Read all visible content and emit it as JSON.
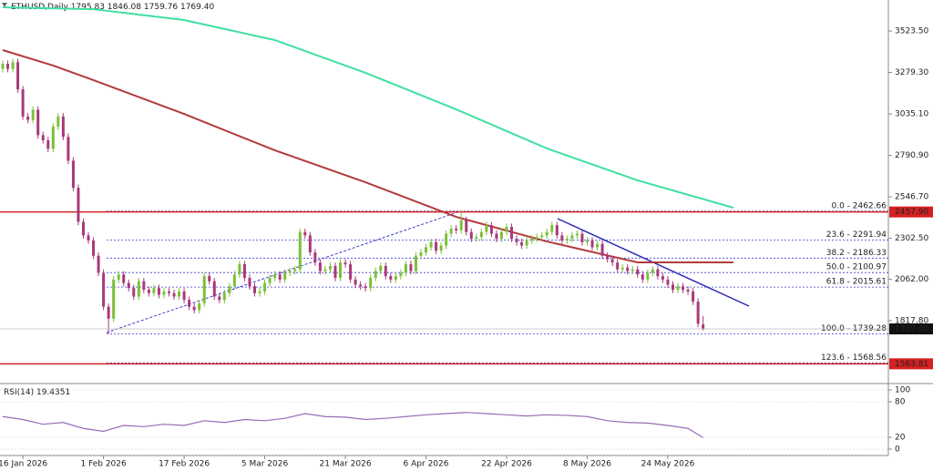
{
  "chart_data": {
    "type": "candlestick",
    "symbol": "ETHUSD,Daily",
    "quote_labels": [
      "1795.83",
      "1846.08",
      "1759.76",
      "1769.40"
    ],
    "categories": [
      null,
      null,
      null,
      null,
      "16 Jan 2026",
      null,
      null,
      null,
      null,
      null,
      null,
      null,
      null,
      null,
      null,
      null,
      null,
      null,
      null,
      null,
      "1 Feb 2026",
      null,
      null,
      null,
      null,
      null,
      null,
      null,
      null,
      null,
      null,
      null,
      null,
      null,
      null,
      null,
      "17 Feb 2026",
      null,
      null,
      null,
      null,
      null,
      null,
      null,
      null,
      null,
      null,
      null,
      null,
      null,
      null,
      null,
      "5 Mar 2026",
      null,
      null,
      null,
      null,
      null,
      null,
      null,
      null,
      null,
      null,
      null,
      null,
      null,
      null,
      null,
      "21 Mar 2026",
      null,
      null,
      null,
      null,
      null,
      null,
      null,
      null,
      null,
      null,
      null,
      null,
      null,
      null,
      null,
      "6 Apr 2026",
      null,
      null,
      null,
      null,
      null,
      null,
      null,
      null,
      null,
      null,
      null,
      null,
      null,
      null,
      null,
      "22 Apr 2026",
      null,
      null,
      null,
      null,
      null,
      null,
      null,
      null,
      null,
      null,
      null,
      null,
      null,
      null,
      null,
      "8 May 2026",
      null,
      null,
      null,
      null,
      null,
      null,
      null,
      null,
      null,
      null,
      null,
      null,
      null,
      null,
      null,
      "24 May 2026",
      null,
      null,
      null,
      null,
      null,
      null,
      null
    ],
    "series": [
      {
        "up_color": "#7cc036",
        "down_color": "#a8397a",
        "open": [
          3300,
          3330,
          3300,
          3340,
          3180,
          3020,
          3000,
          3060,
          2910,
          2880,
          2830,
          2960,
          3020,
          2900,
          2760,
          2600,
          2400,
          2320,
          2290,
          2200,
          2100,
          1900,
          1830,
          2060,
          2090,
          2040,
          2010,
          1960,
          2050,
          2000,
          1980,
          2010,
          1970,
          1990,
          1980,
          1960,
          1990,
          1940,
          1900,
          1880,
          1920,
          2080,
          2050,
          1960,
          1940,
          1980,
          2020,
          2090,
          2150,
          2070,
          2020,
          1980,
          1990,
          2040,
          2070,
          2090,
          2060,
          2100,
          2110,
          2120,
          2340,
          2320,
          2220,
          2160,
          2110,
          2120,
          2140,
          2070,
          2160,
          2150,
          2060,
          2030,
          2020,
          2010,
          2070,
          2110,
          2140,
          2080,
          2060,
          2080,
          2100,
          2150,
          2110,
          2200,
          2220,
          2250,
          2280,
          2230,
          2260,
          2330,
          2360,
          2350,
          2410,
          2340,
          2300,
          2310,
          2340,
          2380,
          2330,
          2300,
          2340,
          2370,
          2300,
          2280,
          2260,
          2290,
          2300,
          2310,
          2320,
          2340,
          2380,
          2320,
          2290,
          2300,
          2320,
          2330,
          2280,
          2290,
          2250,
          2270,
          2200,
          2180,
          2160,
          2120,
          2130,
          2110,
          2120,
          2090,
          2060,
          2100,
          2120,
          2080,
          2060,
          2030,
          2000,
          2020,
          2000,
          1990,
          1930,
          1795.83
        ],
        "high": [
          3350,
          3350,
          3360,
          3360,
          3200,
          3040,
          3080,
          3080,
          2930,
          2900,
          2980,
          3040,
          3040,
          2920,
          2780,
          2620,
          2420,
          2340,
          2310,
          2220,
          2120,
          1920,
          2080,
          2110,
          2110,
          2060,
          2030,
          2070,
          2070,
          2020,
          2030,
          2030,
          2010,
          2010,
          2000,
          2010,
          2010,
          1960,
          1920,
          1940,
          2100,
          2100,
          2070,
          1980,
          2000,
          2040,
          2110,
          2170,
          2170,
          2090,
          2040,
          2010,
          2060,
          2090,
          2110,
          2110,
          2120,
          2130,
          2140,
          2360,
          2360,
          2340,
          2240,
          2180,
          2140,
          2160,
          2160,
          2180,
          2180,
          2170,
          2080,
          2050,
          2040,
          2090,
          2130,
          2160,
          2160,
          2100,
          2100,
          2120,
          2170,
          2170,
          2220,
          2240,
          2270,
          2300,
          2300,
          2280,
          2350,
          2380,
          2380,
          2462.66,
          2430,
          2360,
          2330,
          2360,
          2400,
          2400,
          2350,
          2360,
          2390,
          2390,
          2320,
          2300,
          2310,
          2320,
          2330,
          2340,
          2360,
          2400,
          2400,
          2340,
          2320,
          2340,
          2350,
          2350,
          2310,
          2310,
          2290,
          2290,
          2220,
          2200,
          2180,
          2150,
          2150,
          2140,
          2140,
          2110,
          2120,
          2140,
          2140,
          2100,
          2080,
          2050,
          2040,
          2040,
          2020,
          2010,
          1950,
          1846.08
        ],
        "low": [
          3280,
          3280,
          3280,
          3160,
          3000,
          2980,
          2980,
          2890,
          2860,
          2810,
          2810,
          2940,
          2880,
          2740,
          2580,
          2380,
          2300,
          2270,
          2180,
          2080,
          1880,
          1739.28,
          1810,
          2040,
          2020,
          1990,
          1940,
          1940,
          1980,
          1960,
          1960,
          1950,
          1950,
          1960,
          1940,
          1940,
          1920,
          1880,
          1860,
          1860,
          1900,
          2030,
          1940,
          1920,
          1920,
          1960,
          2000,
          2070,
          2050,
          2000,
          1960,
          1960,
          1970,
          2020,
          2050,
          2040,
          2040,
          2080,
          2090,
          2100,
          2300,
          2200,
          2140,
          2090,
          2090,
          2100,
          2050,
          2050,
          2130,
          2040,
          2010,
          2000,
          1990,
          1990,
          2050,
          2090,
          2060,
          2040,
          2040,
          2060,
          2080,
          2090,
          2090,
          2180,
          2200,
          2230,
          2210,
          2210,
          2240,
          2310,
          2330,
          2330,
          2320,
          2280,
          2280,
          2290,
          2320,
          2310,
          2280,
          2280,
          2320,
          2280,
          2260,
          2240,
          2240,
          2270,
          2280,
          2290,
          2300,
          2320,
          2300,
          2270,
          2270,
          2280,
          2300,
          2260,
          2260,
          2230,
          2230,
          2180,
          2160,
          2140,
          2100,
          2100,
          2090,
          2090,
          2070,
          2040,
          2040,
          2080,
          2060,
          2040,
          2010,
          1980,
          1980,
          1980,
          1970,
          1910,
          1780,
          1759.76
        ],
        "close": [
          3330,
          3300,
          3340,
          3180,
          3020,
          3000,
          3060,
          2910,
          2880,
          2830,
          2960,
          3020,
          2900,
          2760,
          2600,
          2400,
          2320,
          2290,
          2200,
          2100,
          1900,
          1830,
          2060,
          2090,
          2040,
          2010,
          1960,
          2050,
          2000,
          1980,
          2010,
          1970,
          1990,
          1980,
          1960,
          1990,
          1940,
          1900,
          1880,
          1920,
          2080,
          2050,
          1960,
          1940,
          1980,
          2020,
          2090,
          2150,
          2070,
          2020,
          1980,
          1990,
          2040,
          2070,
          2090,
          2060,
          2100,
          2110,
          2120,
          2340,
          2320,
          2220,
          2160,
          2110,
          2120,
          2140,
          2070,
          2160,
          2150,
          2060,
          2030,
          2020,
          2010,
          2070,
          2110,
          2140,
          2080,
          2060,
          2080,
          2100,
          2150,
          2110,
          2200,
          2220,
          2250,
          2280,
          2230,
          2260,
          2330,
          2360,
          2350,
          2410,
          2340,
          2300,
          2310,
          2340,
          2380,
          2330,
          2300,
          2340,
          2370,
          2300,
          2280,
          2260,
          2290,
          2300,
          2310,
          2320,
          2340,
          2380,
          2320,
          2290,
          2300,
          2320,
          2330,
          2280,
          2290,
          2250,
          2270,
          2200,
          2180,
          2160,
          2120,
          2130,
          2110,
          2120,
          2090,
          2060,
          2100,
          2120,
          2080,
          2060,
          2030,
          2000,
          2020,
          2000,
          1990,
          1930,
          1800,
          1769.4
        ]
      }
    ],
    "lines": [
      {
        "color": "#3ee0a0",
        "x": [
          0,
          18,
          36,
          54,
          72,
          90,
          108,
          126,
          145
        ],
        "values": [
          3663,
          3652,
          3588,
          3470,
          3277,
          3062,
          2832,
          2644,
          2483
        ]
      },
      {
        "color": "#b33a3a",
        "x": [
          0,
          10,
          18,
          36,
          54,
          72,
          90,
          108,
          126,
          145
        ],
        "values": [
          3411,
          3320,
          3234,
          3035,
          2821,
          2633,
          2429,
          2284,
          2161,
          2161
        ]
      }
    ],
    "ylim": [
      1453,
      3706
    ],
    "yticks": [
      {
        "value": 3523.5,
        "label": "3523.50"
      },
      {
        "value": 3279.3,
        "label": "3279.30"
      },
      {
        "value": 3035.1,
        "label": "3035.10"
      },
      {
        "value": 2790.9,
        "label": "2790.90"
      },
      {
        "value": 2546.7,
        "label": "2546.70"
      },
      {
        "value": 2302.5,
        "label": "2302.50"
      },
      {
        "value": 2062,
        "label": "2062.00"
      },
      {
        "value": 1817.8,
        "label": "1817.80"
      }
    ],
    "levels": [
      {
        "value": 2457.9,
        "label": "2457.90",
        "color": "#d42020"
      },
      {
        "value": 1563.81,
        "label": "1563.81",
        "color": "#d42020"
      }
    ],
    "fib": [
      {
        "value": 2462.66,
        "label": "0.0 - 2462.66"
      },
      {
        "value": 2291.94,
        "label": "23.6 - 2291.94"
      },
      {
        "value": 2186.33,
        "label": "38.2 - 2186.33"
      },
      {
        "value": 2100.97,
        "label": "50.0 - 2100.97"
      },
      {
        "value": 2015.61,
        "label": "61.8 - 2015.61"
      },
      {
        "value": 1739.28,
        "label": "100.0 - 1739.28"
      },
      {
        "value": 1568.56,
        "label": "123.6 - 1568.56"
      }
    ],
    "rsi": {
      "label": "RSI(14)",
      "color": "#9a6ab8",
      "ylim": [
        0,
        100
      ],
      "yticks": [
        100,
        80,
        20,
        0
      ],
      "x": [
        0,
        4,
        8,
        12,
        16,
        20,
        24,
        28,
        32,
        36,
        40,
        44,
        48,
        52,
        56,
        60,
        64,
        68,
        72,
        76,
        80,
        84,
        88,
        92,
        96,
        100,
        104,
        108,
        112,
        116,
        120,
        124,
        128,
        132,
        136,
        139
      ],
      "values": [
        55,
        50,
        42,
        45,
        35,
        30,
        40,
        38,
        42,
        40,
        48,
        45,
        50,
        48,
        52,
        60,
        55,
        54,
        50,
        52,
        55,
        58,
        60,
        62,
        60,
        58,
        56,
        58,
        57,
        55,
        48,
        45,
        44,
        40,
        35,
        19.4351
      ]
    }
  }
}
